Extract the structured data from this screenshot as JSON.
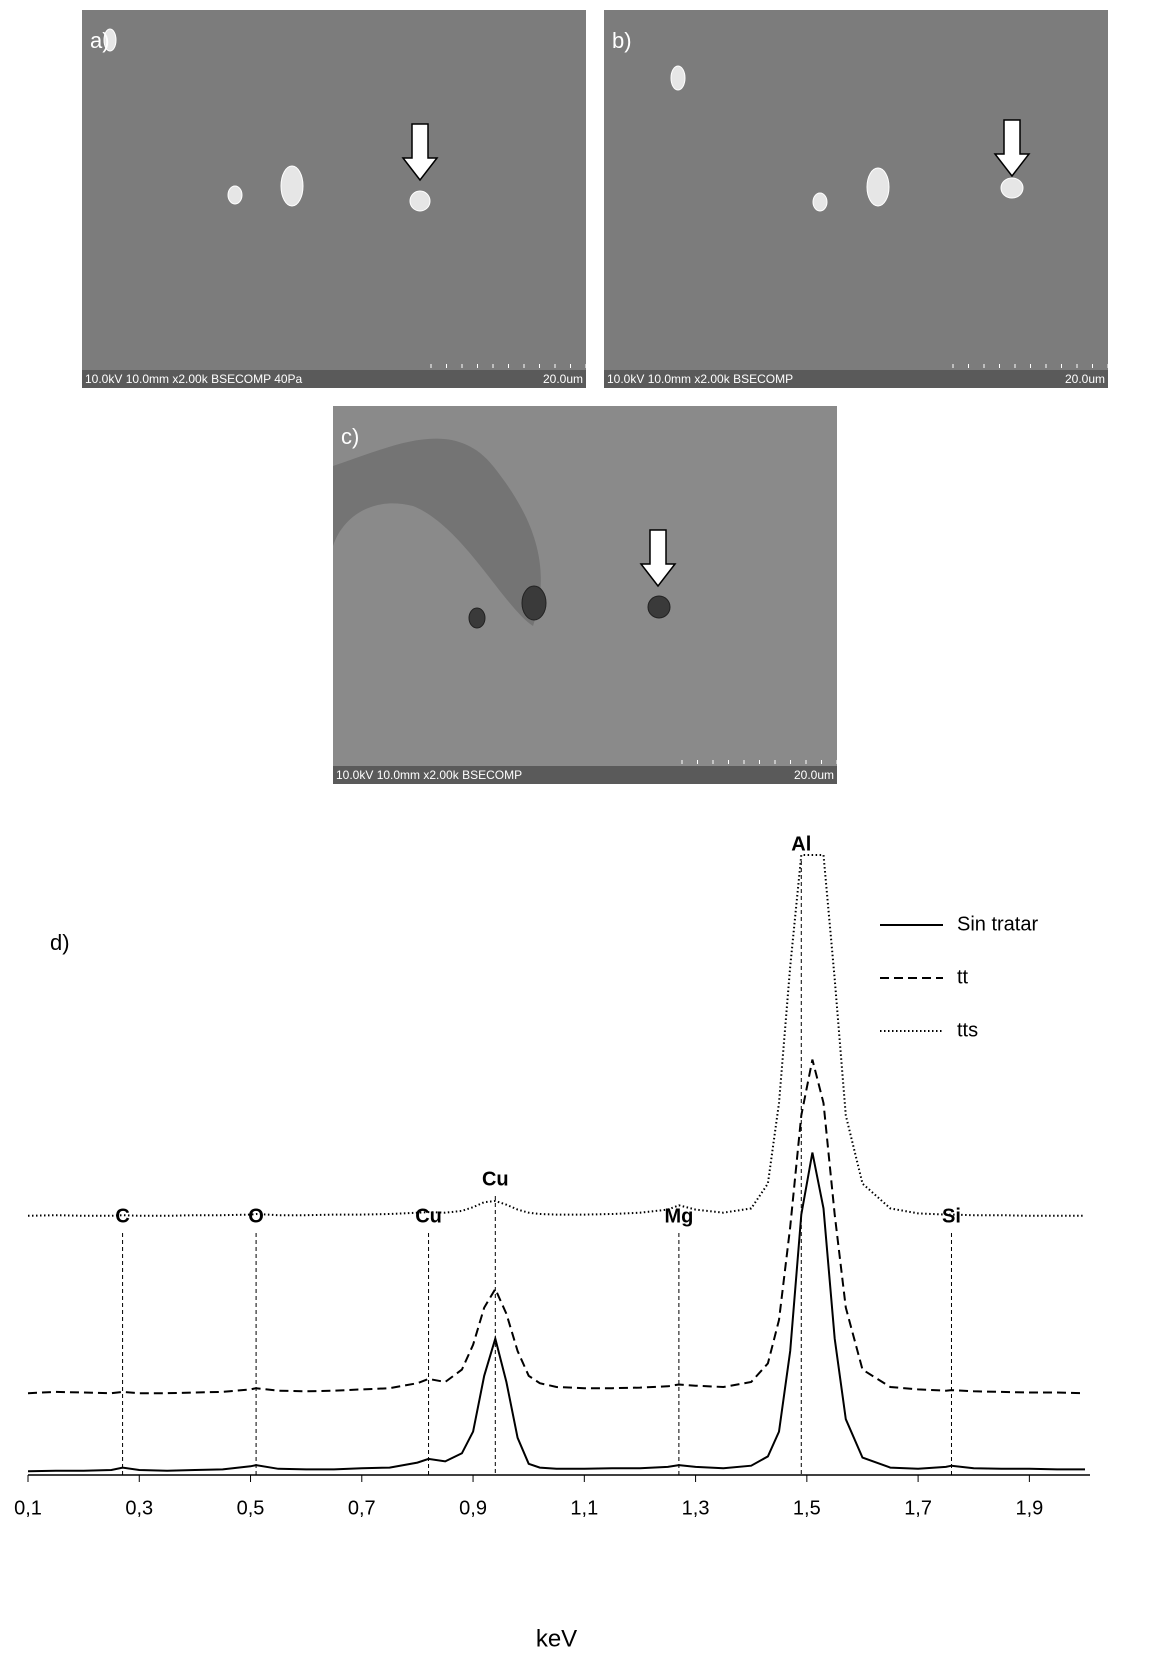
{
  "panels": [
    {
      "label": "a)",
      "info": "10.0kV 10.0mm x2.00k BSECOMP 40Pa",
      "scale": "20.0um"
    },
    {
      "label": "b)",
      "info": "10.0kV 10.0mm x2.00k BSECOMP",
      "scale": "20.0um"
    },
    {
      "label": "c)",
      "info": "10.0kV 10.0mm x2.00k BSECOMP",
      "scale": "20.0um"
    }
  ],
  "chart_data": {
    "type": "line",
    "panel_label": "d)",
    "x_label": "keV",
    "xlim": [
      0.1,
      2.0
    ],
    "ylim": [
      0,
      100
    ],
    "xticks": [
      {
        "value": 0.1,
        "label": "0,1"
      },
      {
        "value": 0.3,
        "label": "0,3"
      },
      {
        "value": 0.5,
        "label": "0,5"
      },
      {
        "value": 0.7,
        "label": "0,7"
      },
      {
        "value": 0.9,
        "label": "0,9"
      },
      {
        "value": 1.1,
        "label": "1,1"
      },
      {
        "value": 1.3,
        "label": "1,3"
      },
      {
        "value": 1.5,
        "label": "1,5"
      },
      {
        "value": 1.7,
        "label": "1,7"
      },
      {
        "value": 1.9,
        "label": "1,9"
      }
    ],
    "legend": "top-right",
    "x": [
      0.1,
      0.15,
      0.2,
      0.25,
      0.27,
      0.3,
      0.35,
      0.4,
      0.45,
      0.5,
      0.51,
      0.55,
      0.6,
      0.65,
      0.7,
      0.75,
      0.8,
      0.82,
      0.85,
      0.88,
      0.9,
      0.92,
      0.94,
      0.96,
      0.98,
      1.0,
      1.02,
      1.05,
      1.1,
      1.15,
      1.2,
      1.25,
      1.27,
      1.3,
      1.35,
      1.4,
      1.43,
      1.45,
      1.47,
      1.49,
      1.51,
      1.53,
      1.55,
      1.57,
      1.6,
      1.65,
      1.7,
      1.75,
      1.76,
      1.8,
      1.85,
      1.9,
      1.95,
      2.0
    ],
    "series": [
      {
        "name": "Sin tratar",
        "color": "#000000",
        "style": "solid",
        "values": [
          0.6,
          0.7,
          0.7,
          0.8,
          1.2,
          0.8,
          0.7,
          0.8,
          0.9,
          1.4,
          1.6,
          1.0,
          0.9,
          0.9,
          1.1,
          1.2,
          2.0,
          2.6,
          2.2,
          3.5,
          7,
          16,
          22,
          15,
          6,
          1.8,
          1.2,
          1.0,
          1.0,
          1.1,
          1.1,
          1.3,
          1.6,
          1.3,
          1.1,
          1.5,
          3,
          7,
          20,
          42,
          52,
          43,
          22,
          9,
          2.8,
          1.2,
          1.0,
          1.3,
          1.5,
          1.1,
          1.0,
          1.0,
          0.9,
          0.9
        ]
      },
      {
        "name": "tt",
        "color": "#000000",
        "style": "dashed",
        "values": [
          13.2,
          13.4,
          13.3,
          13.2,
          13.4,
          13.2,
          13.2,
          13.3,
          13.4,
          13.8,
          14.0,
          13.6,
          13.5,
          13.6,
          13.8,
          14.0,
          14.8,
          15.5,
          15,
          17,
          21,
          27,
          30,
          26,
          20,
          16,
          14.8,
          14.2,
          14,
          14,
          14.1,
          14.3,
          14.6,
          14.4,
          14.2,
          15,
          18,
          25,
          40,
          58,
          67,
          60,
          42,
          27,
          17,
          14.2,
          13.8,
          13.6,
          13.7,
          13.5,
          13.4,
          13.3,
          13.3,
          13.2
        ]
      },
      {
        "name": "tts",
        "color": "#000000",
        "style": "dotted",
        "values": [
          41.8,
          41.9,
          41.8,
          41.8,
          41.9,
          41.8,
          41.8,
          41.9,
          41.9,
          42.0,
          42.1,
          41.9,
          41.9,
          42.0,
          42.0,
          42.1,
          42.3,
          42.4,
          42.3,
          42.6,
          43.2,
          44,
          44.2,
          43.6,
          42.8,
          42.3,
          42.1,
          42.0,
          42.0,
          42.1,
          42.3,
          42.8,
          43.5,
          42.8,
          42.3,
          43,
          47,
          60,
          82,
          100,
          100,
          100,
          80,
          58,
          47,
          43,
          42.2,
          42.0,
          42.0,
          41.9,
          41.9,
          41.8,
          41.8,
          41.8
        ]
      }
    ],
    "annotations": [
      {
        "label": "C",
        "x": 0.27
      },
      {
        "label": "O",
        "x": 0.51
      },
      {
        "label": "Cu",
        "x": 0.82
      },
      {
        "label": "Cu",
        "x": 0.94
      },
      {
        "label": "Mg",
        "x": 1.27
      },
      {
        "label": "Al",
        "x": 1.49
      },
      {
        "label": "Si",
        "x": 1.76
      }
    ]
  }
}
